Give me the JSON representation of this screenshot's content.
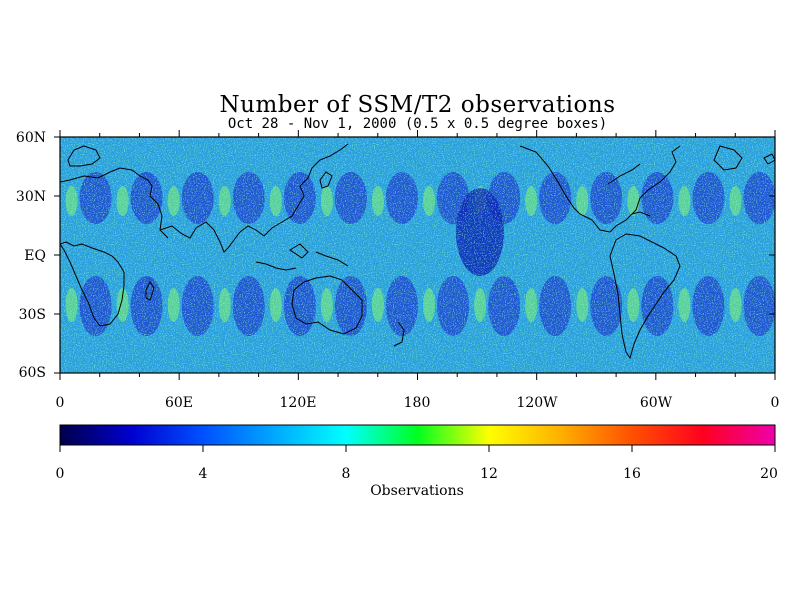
{
  "title": "Number of SSM/T2 observations",
  "subtitle": "Oct 28 - Nov 1, 2000 (0.5 x 0.5 degree boxes)",
  "map": {
    "projection": "equirectangular",
    "lat_labels": [
      "60N",
      "30N",
      "EQ",
      "30S",
      "60S"
    ],
    "lon_labels": [
      "0",
      "60E",
      "120E",
      "180",
      "120W",
      "60W",
      "0"
    ]
  },
  "colorbar": {
    "label": "Observations",
    "tick_labels": [
      "0",
      "4",
      "8",
      "12",
      "16",
      "20"
    ],
    "range": [
      0,
      20
    ],
    "colors": [
      "#00005a",
      "#0000ff",
      "#00b4ff",
      "#00ffff",
      "#00ff00",
      "#ffff00",
      "#ffa000",
      "#ff0000",
      "#ff00aa"
    ]
  }
}
